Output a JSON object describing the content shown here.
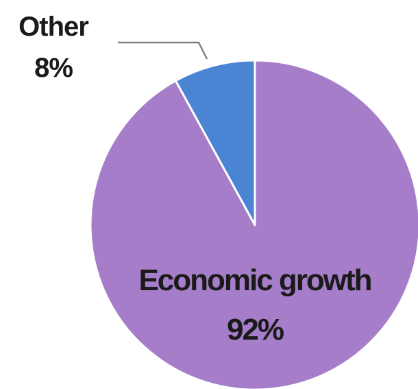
{
  "chart_data": {
    "type": "pie",
    "slices": [
      {
        "label": "Economic growth",
        "value": 92,
        "value_label": "92%",
        "color": "#a57dc8"
      },
      {
        "label": "Other",
        "value": 8,
        "value_label": "8%",
        "color": "#4b84d3"
      }
    ],
    "slice_border_color": "#ffffff",
    "leader_line_color": "#808080",
    "legend": "none"
  }
}
